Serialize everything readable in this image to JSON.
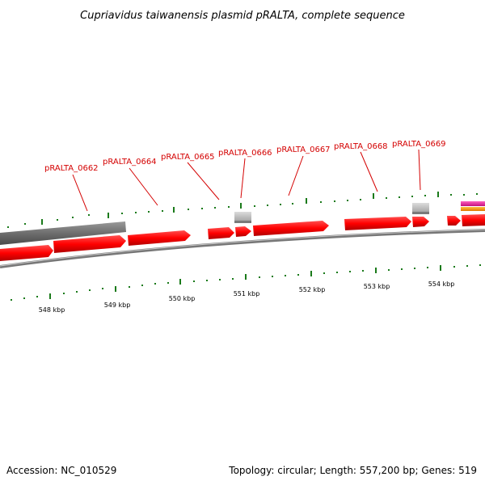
{
  "title": "Cupriavidus taiwanensis plasmid pRALTA, complete sequence",
  "footer": {
    "accession": "Accession: NC_010529",
    "stats": "Topology: circular; Length: 557,200 bp; Genes: 519"
  },
  "colors": {
    "gene_red": "#ff0000",
    "gene_gray": "#666666",
    "label_red": "#d40000",
    "tick_green": "#1a7a1a",
    "backbone": "#888888",
    "feature_magenta": "#e0189a",
    "feature_orange": "#f59a00"
  },
  "gene_labels": [
    "pRALTA_0662",
    "pRALTA_0664",
    "pRALTA_0665",
    "pRALTA_0666",
    "pRALTA_0667",
    "pRALTA_0668",
    "pRALTA_0669"
  ],
  "kbp_labels": [
    "548 kbp",
    "549 kbp",
    "550 kbp",
    "551 kbp",
    "552 kbp",
    "553 kbp",
    "554 kbp"
  ]
}
